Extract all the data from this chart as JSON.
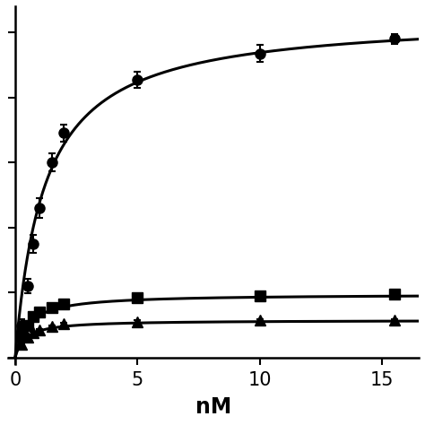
{
  "title": "",
  "xlabel": "nM",
  "ylabel": "",
  "xlim": [
    -0.3,
    16.5
  ],
  "ylim": [
    -0.02,
    1.08
  ],
  "xticks": [
    0,
    5,
    10,
    15
  ],
  "yticks": [
    0.0,
    0.2,
    0.4,
    0.6,
    0.8,
    1.0
  ],
  "background_color": "#ffffff",
  "curve1": {
    "Bmax": 1.05,
    "Kd": 1.2,
    "color": "#000000",
    "marker": "o",
    "markersize": 8,
    "x_data": [
      0.25,
      0.5,
      0.75,
      1.0,
      1.5,
      2.0,
      5.0,
      10.0,
      15.5
    ],
    "y_data": [
      0.1,
      0.22,
      0.35,
      0.46,
      0.6,
      0.69,
      0.855,
      0.935,
      0.98
    ],
    "y_err": [
      0.018,
      0.022,
      0.028,
      0.03,
      0.028,
      0.025,
      0.025,
      0.025,
      0.015
    ]
  },
  "curve2": {
    "Bmax": 0.195,
    "Kd": 0.5,
    "color": "#000000",
    "marker": "s",
    "markersize": 8,
    "x_data": [
      0.25,
      0.5,
      0.75,
      1.0,
      1.5,
      2.0,
      5.0,
      10.0,
      15.5
    ],
    "y_data": [
      0.065,
      0.1,
      0.125,
      0.14,
      0.155,
      0.165,
      0.183,
      0.19,
      0.195
    ],
    "y_err": [
      0.005,
      0.005,
      0.005,
      0.005,
      0.005,
      0.005,
      0.005,
      0.005,
      0.004
    ]
  },
  "curve3": {
    "Bmax": 0.115,
    "Kd": 0.4,
    "color": "#000000",
    "marker": "^",
    "markersize": 8,
    "x_data": [
      0.25,
      0.5,
      0.75,
      1.0,
      1.5,
      2.0,
      5.0,
      10.0,
      15.5
    ],
    "y_data": [
      0.04,
      0.063,
      0.076,
      0.085,
      0.096,
      0.103,
      0.111,
      0.114,
      0.116
    ],
    "y_err": [
      0.004,
      0.004,
      0.004,
      0.004,
      0.004,
      0.004,
      0.004,
      0.004,
      0.003
    ]
  }
}
